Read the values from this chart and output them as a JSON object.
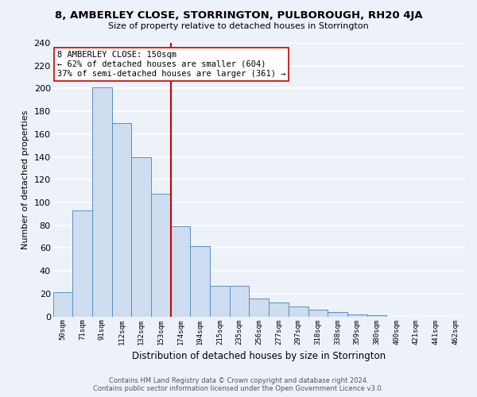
{
  "title": "8, AMBERLEY CLOSE, STORRINGTON, PULBOROUGH, RH20 4JA",
  "subtitle": "Size of property relative to detached houses in Storrington",
  "xlabel": "Distribution of detached houses by size in Storrington",
  "ylabel": "Number of detached properties",
  "bar_labels": [
    "50sqm",
    "71sqm",
    "91sqm",
    "112sqm",
    "132sqm",
    "153sqm",
    "174sqm",
    "194sqm",
    "215sqm",
    "235sqm",
    "256sqm",
    "277sqm",
    "297sqm",
    "318sqm",
    "338sqm",
    "359sqm",
    "380sqm",
    "400sqm",
    "421sqm",
    "441sqm",
    "462sqm"
  ],
  "bar_values": [
    21,
    93,
    201,
    170,
    140,
    108,
    79,
    62,
    27,
    27,
    16,
    12,
    9,
    6,
    4,
    2,
    1,
    0,
    0,
    0,
    0
  ],
  "bar_color": "#cfddf0",
  "bar_edge_color": "#5a8fc0",
  "vline_index": 5,
  "vline_color": "#cc0000",
  "annotation_title": "8 AMBERLEY CLOSE: 150sqm",
  "annotation_line1": "← 62% of detached houses are smaller (604)",
  "annotation_line2": "37% of semi-detached houses are larger (361) →",
  "annotation_box_color": "white",
  "annotation_box_edge": "#cc0000",
  "ylim": [
    0,
    240
  ],
  "yticks": [
    0,
    20,
    40,
    60,
    80,
    100,
    120,
    140,
    160,
    180,
    200,
    220,
    240
  ],
  "footer1": "Contains HM Land Registry data © Crown copyright and database right 2024.",
  "footer2": "Contains public sector information licensed under the Open Government Licence v3.0.",
  "background_color": "#edf2f9",
  "grid_color": "white"
}
